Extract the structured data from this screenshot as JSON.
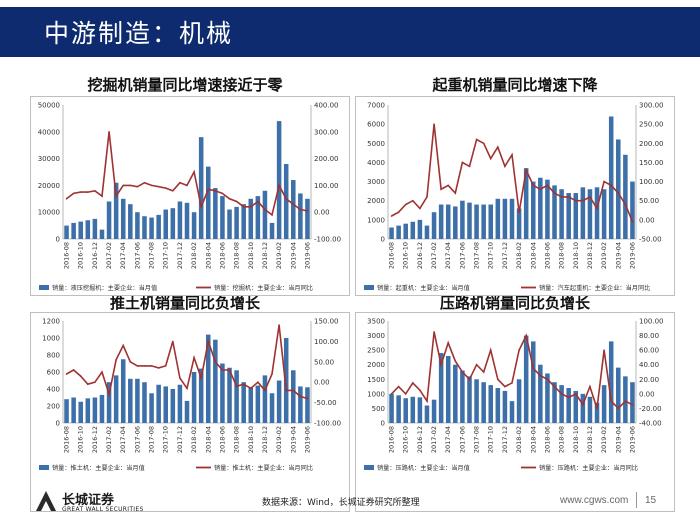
{
  "header": {
    "title": "中游制造：机械"
  },
  "chart_data": [
    {
      "type": "bar",
      "title": "挖掘机销量同比增速接近于零",
      "categories": [
        "2016-08",
        "2016-09",
        "2016-10",
        "2016-11",
        "2016-12",
        "2017-01",
        "2017-02",
        "2017-03",
        "2017-04",
        "2017-05",
        "2017-06",
        "2017-07",
        "2017-08",
        "2017-09",
        "2017-10",
        "2017-11",
        "2017-12",
        "2018-01",
        "2018-02",
        "2018-03",
        "2018-04",
        "2018-05",
        "2018-06",
        "2018-07",
        "2018-08",
        "2018-09",
        "2018-10",
        "2018-11",
        "2018-12",
        "2019-01",
        "2019-02",
        "2019-03",
        "2019-04",
        "2019-05",
        "2019-06"
      ],
      "tick_labels": [
        "2016-08",
        "2016-10",
        "2016-12",
        "2017-02",
        "2017-04",
        "2017-06",
        "2017-08",
        "2017-10",
        "2017-12",
        "2018-02",
        "2018-04",
        "2018-06",
        "2018-08",
        "2018-10",
        "2018-12",
        "2019-02",
        "2019-04",
        "2019-06"
      ],
      "series": [
        {
          "name": "销量：液压挖掘机：主要企业：当月值",
          "axis": "left",
          "kind": "bar",
          "values": [
            5000,
            6000,
            6500,
            7000,
            7500,
            3500,
            14000,
            21000,
            15000,
            13000,
            10000,
            8500,
            8000,
            9000,
            11000,
            11500,
            14000,
            13500,
            10000,
            38000,
            27000,
            19000,
            16000,
            11000,
            12000,
            13000,
            15000,
            16000,
            18000,
            6000,
            44000,
            28000,
            22000,
            17000,
            15000
          ]
        },
        {
          "name": "销量：挖掘机：主要企业：当月同比",
          "axis": "right",
          "kind": "line",
          "values": [
            50,
            70,
            75,
            75,
            80,
            60,
            300,
            60,
            100,
            100,
            95,
            110,
            100,
            95,
            90,
            80,
            110,
            100,
            150,
            20,
            85,
            80,
            70,
            50,
            40,
            20,
            20,
            40,
            10,
            -10,
            100,
            50,
            30,
            10,
            5
          ]
        }
      ],
      "yleft": {
        "ylim": [
          0,
          50000
        ],
        "ticks": [
          "0",
          "10000",
          "20000",
          "30000",
          "40000",
          "50000"
        ]
      },
      "yright": {
        "ylim": [
          -100,
          400
        ],
        "ticks": [
          "-100.00",
          "0.00",
          "100.00",
          "200.00",
          "300.00",
          "400.00"
        ]
      },
      "legend": [
        "销量：液压挖掘机：主要企业：当月值",
        "销量：挖掘机：主要企业：当月同比"
      ]
    },
    {
      "type": "bar",
      "title": "起重机销量同比增速下降",
      "categories": [
        "2016-08",
        "2016-09",
        "2016-10",
        "2016-11",
        "2016-12",
        "2017-01",
        "2017-02",
        "2017-03",
        "2017-04",
        "2017-05",
        "2017-06",
        "2017-07",
        "2017-08",
        "2017-09",
        "2017-10",
        "2017-11",
        "2017-12",
        "2018-01",
        "2018-02",
        "2018-03",
        "2018-04",
        "2018-05",
        "2018-06",
        "2018-07",
        "2018-08",
        "2018-09",
        "2018-10",
        "2018-11",
        "2018-12",
        "2019-01",
        "2019-02",
        "2019-03",
        "2019-04",
        "2019-05",
        "2019-06"
      ],
      "tick_labels": [
        "2016-08",
        "2016-10",
        "2016-12",
        "2017-02",
        "2017-04",
        "2017-06",
        "2017-08",
        "2017-10",
        "2017-12",
        "2018-02",
        "2018-04",
        "2018-06",
        "2018-08",
        "2018-10",
        "2018-12",
        "2019-02",
        "2019-04",
        "2019-06"
      ],
      "series": [
        {
          "name": "销量：起重机：主要企业：当月值",
          "axis": "left",
          "kind": "bar",
          "values": [
            600,
            700,
            800,
            900,
            1000,
            700,
            1400,
            1800,
            1800,
            1700,
            2000,
            1900,
            1800,
            1800,
            1800,
            2100,
            2100,
            2100,
            1600,
            3700,
            3000,
            3200,
            3100,
            2800,
            2600,
            2400,
            2400,
            2700,
            2600,
            2700,
            2600,
            6400,
            5200,
            4400,
            3000
          ]
        },
        {
          "name": "销量：汽车起重机：主要企业：当月同比",
          "axis": "right",
          "kind": "line",
          "values": [
            10,
            20,
            40,
            50,
            30,
            60,
            250,
            80,
            90,
            70,
            150,
            140,
            210,
            200,
            160,
            190,
            140,
            170,
            20,
            130,
            90,
            80,
            90,
            70,
            60,
            60,
            50,
            50,
            60,
            30,
            100,
            90,
            70,
            40,
            -5
          ]
        }
      ],
      "yleft": {
        "ylim": [
          0,
          7000
        ],
        "ticks": [
          "0",
          "1000",
          "2000",
          "3000",
          "4000",
          "5000",
          "6000",
          "7000"
        ]
      },
      "yright": {
        "ylim": [
          -50,
          300
        ],
        "ticks": [
          "-50.00",
          "0.00",
          "50.00",
          "100.00",
          "150.00",
          "200.00",
          "250.00",
          "300.00"
        ]
      },
      "legend": [
        "销量：起重机：主要企业：当月值",
        "销量：汽车起重机：主要企业：当月同比"
      ]
    },
    {
      "type": "bar",
      "title": "推土机销量同比负增长",
      "categories": [
        "2016-08",
        "2016-09",
        "2016-10",
        "2016-11",
        "2016-12",
        "2017-01",
        "2017-02",
        "2017-03",
        "2017-04",
        "2017-05",
        "2017-06",
        "2017-07",
        "2017-08",
        "2017-09",
        "2017-10",
        "2017-11",
        "2017-12",
        "2018-01",
        "2018-02",
        "2018-03",
        "2018-04",
        "2018-05",
        "2018-06",
        "2018-07",
        "2018-08",
        "2018-09",
        "2018-10",
        "2018-11",
        "2018-12",
        "2019-01",
        "2019-02",
        "2019-03",
        "2019-04",
        "2019-05",
        "2019-06"
      ],
      "tick_labels": [
        "2016-08",
        "2016-10",
        "2016-12",
        "2017-02",
        "2017-04",
        "2017-06",
        "2017-08",
        "2017-10",
        "2017-12",
        "2018-02",
        "2018-04",
        "2018-06",
        "2018-08",
        "2018-10",
        "2018-12",
        "2019-02",
        "2019-04",
        "2019-06"
      ],
      "series": [
        {
          "name": "销量：推土机：主要企业：当月值",
          "axis": "left",
          "kind": "bar",
          "values": [
            280,
            300,
            250,
            290,
            300,
            330,
            480,
            560,
            750,
            520,
            520,
            480,
            350,
            450,
            430,
            400,
            450,
            260,
            600,
            640,
            1040,
            980,
            700,
            650,
            620,
            480,
            420,
            440,
            560,
            350,
            500,
            1000,
            620,
            430,
            420
          ]
        },
        {
          "name": "销量：推土机：主要企业：当月同比",
          "axis": "right",
          "kind": "line",
          "values": [
            20,
            30,
            15,
            -5,
            0,
            25,
            -30,
            55,
            90,
            50,
            40,
            40,
            40,
            35,
            40,
            100,
            10,
            -15,
            60,
            10,
            100,
            50,
            30,
            30,
            -10,
            -5,
            -15,
            0,
            -20,
            20,
            140,
            -20,
            -20,
            -35,
            -40
          ]
        }
      ],
      "yleft": {
        "ylim": [
          0,
          1200
        ],
        "ticks": [
          "0",
          "200",
          "400",
          "600",
          "800",
          "1000",
          "1200"
        ]
      },
      "yright": {
        "ylim": [
          -100,
          150
        ],
        "ticks": [
          "-100.00",
          "-50.00",
          "0.00",
          "50.00",
          "100.00",
          "150.00"
        ]
      },
      "legend": [
        "销量：推土机：主要企业：当月值",
        "销量：推土机：主要企业：当月同比"
      ]
    },
    {
      "type": "bar",
      "title": "压路机销量同比负增长",
      "categories": [
        "2016-08",
        "2016-09",
        "2016-10",
        "2016-11",
        "2016-12",
        "2017-01",
        "2017-02",
        "2017-03",
        "2017-04",
        "2017-05",
        "2017-06",
        "2017-07",
        "2017-08",
        "2017-09",
        "2017-10",
        "2017-11",
        "2017-12",
        "2018-01",
        "2018-02",
        "2018-03",
        "2018-04",
        "2018-05",
        "2018-06",
        "2018-07",
        "2018-08",
        "2018-09",
        "2018-10",
        "2018-11",
        "2018-12",
        "2019-01",
        "2019-02",
        "2019-03",
        "2019-04",
        "2019-05",
        "2019-06"
      ],
      "tick_labels": [
        "2016-08",
        "2016-10",
        "2016-12",
        "2017-02",
        "2017-04",
        "2017-06",
        "2017-08",
        "2017-10",
        "2017-12",
        "2018-02",
        "2018-04",
        "2018-06",
        "2018-08",
        "2018-10",
        "2018-12",
        "2019-02",
        "2019-04",
        "2019-06"
      ],
      "series": [
        {
          "name": "销量：压路机：主要企业：当月值",
          "axis": "left",
          "kind": "bar",
          "values": [
            1000,
            950,
            850,
            900,
            880,
            600,
            800,
            2400,
            2300,
            2000,
            1800,
            1600,
            1500,
            1400,
            1300,
            1200,
            1100,
            750,
            1500,
            3000,
            2800,
            2000,
            1700,
            1400,
            1300,
            1200,
            1100,
            1000,
            900,
            700,
            1300,
            2800,
            1900,
            1600,
            1400
          ]
        },
        {
          "name": "销量：压路机：主要企业：当月同比",
          "axis": "right",
          "kind": "line",
          "values": [
            0,
            10,
            0,
            15,
            5,
            -10,
            85,
            40,
            70,
            45,
            30,
            20,
            40,
            30,
            60,
            20,
            10,
            15,
            60,
            80,
            35,
            25,
            20,
            10,
            0,
            -5,
            0,
            -15,
            10,
            -20,
            60,
            -10,
            -20,
            -10,
            -15
          ]
        }
      ],
      "yleft": {
        "ylim": [
          0,
          3500
        ],
        "ticks": [
          "0",
          "500",
          "1000",
          "1500",
          "2000",
          "2500",
          "3000",
          "3500"
        ]
      },
      "yright": {
        "ylim": [
          -40,
          100
        ],
        "ticks": [
          "-40.00",
          "-20.00",
          "0.00",
          "20.00",
          "40.00",
          "60.00",
          "80.00",
          "100.00"
        ]
      },
      "legend": [
        "销量：压路机：主要企业：当月值",
        "销量：压路机：主要企业：当月同比"
      ]
    }
  ],
  "colors": {
    "bar": "#3d6fa8",
    "line": "#a03232",
    "header": "#0d2b6e"
  },
  "footer": {
    "brand_cn": "长城证券",
    "brand_en": "GREAT WALL SECURITIES",
    "source": "数据来源：Wind，长城证券研究所整理",
    "url": "www.cgws.com",
    "page": "15"
  }
}
